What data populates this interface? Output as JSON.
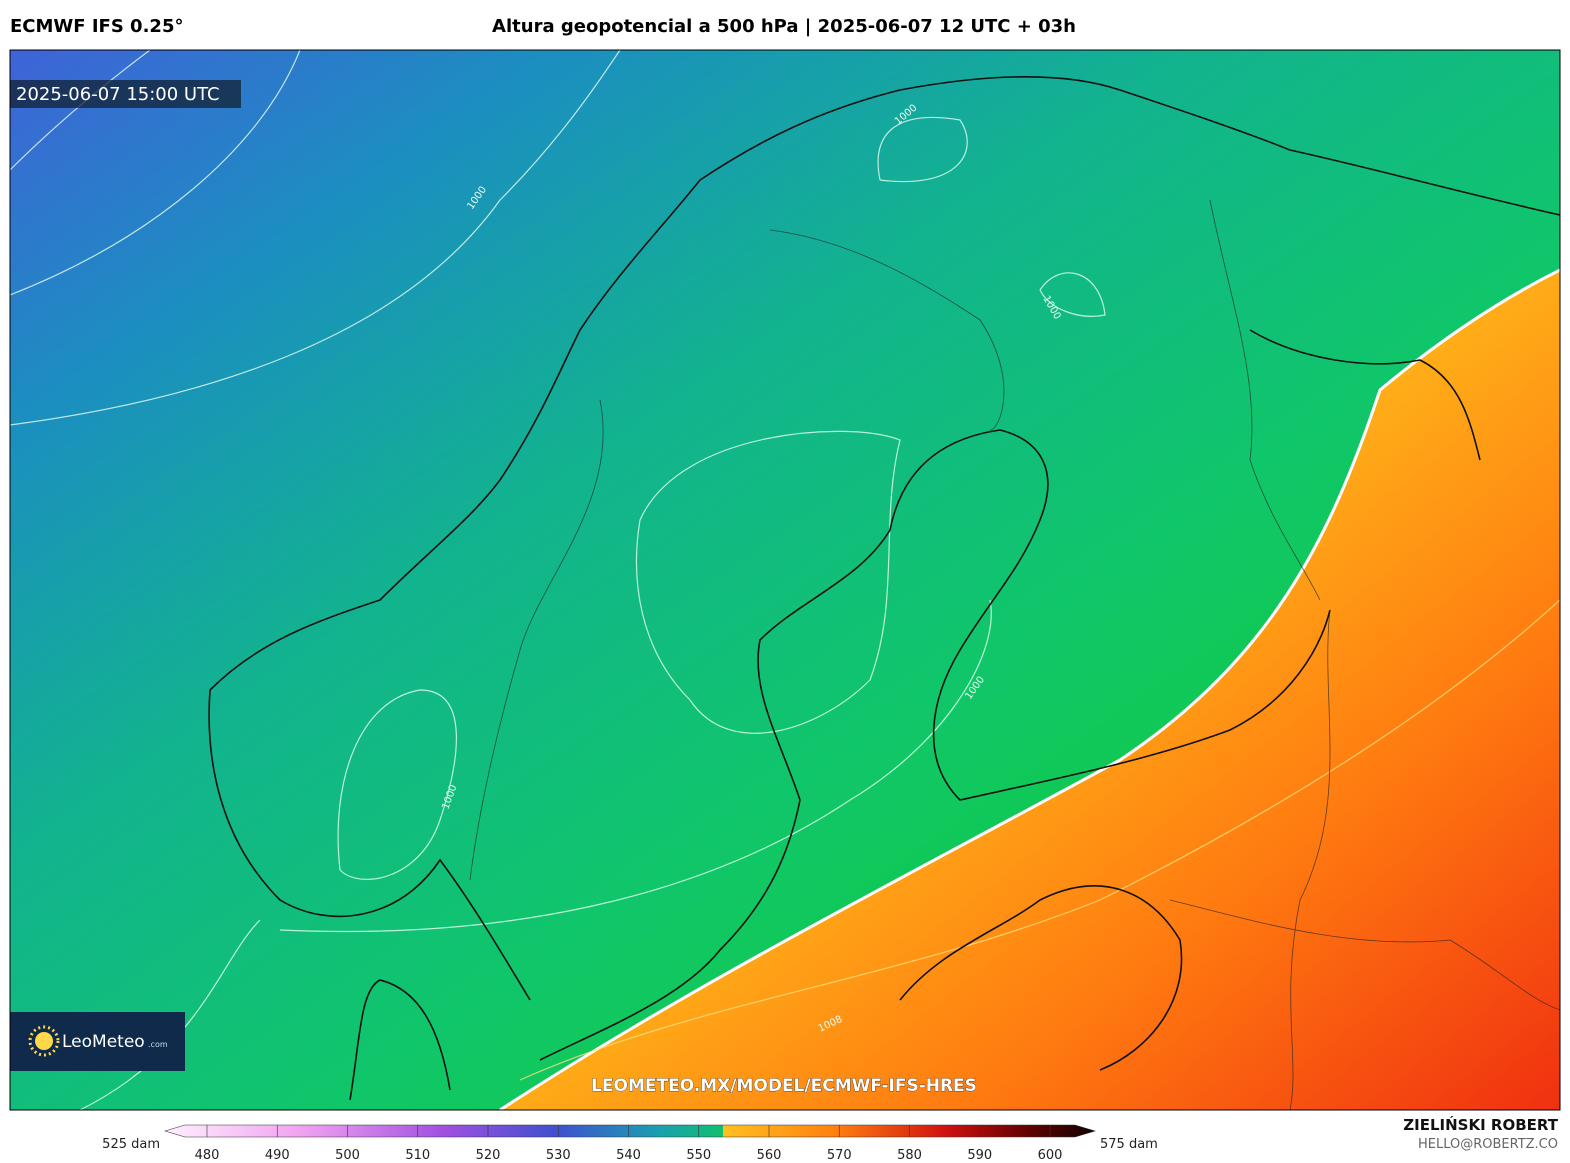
{
  "header": {
    "model": "ECMWF IFS 0.25°",
    "title": "Altura geopotencial a 500 hPa | 2025-06-07 12 UTC + 03h"
  },
  "map": {
    "valid_time": "2025-06-07 15:00 UTC",
    "contour_labels": [
      "1000",
      "1000",
      "1000",
      "1000",
      "1000",
      "1008"
    ],
    "watermark": "LEOMETEO.MX/MODEL/ECMWF-IFS-HRES",
    "logo": {
      "name": "LeoMeteo",
      "suffix": ".com"
    }
  },
  "colorbar": {
    "min_label": "525 dam",
    "max_label": "575 dam",
    "ticks": [
      480,
      490,
      500,
      510,
      520,
      530,
      540,
      550,
      560,
      570,
      580,
      590,
      600
    ]
  },
  "footer": {
    "author": "ZIELIŃSKI ROBERT",
    "email": "HELLO@ROBERTZ.CO"
  }
}
